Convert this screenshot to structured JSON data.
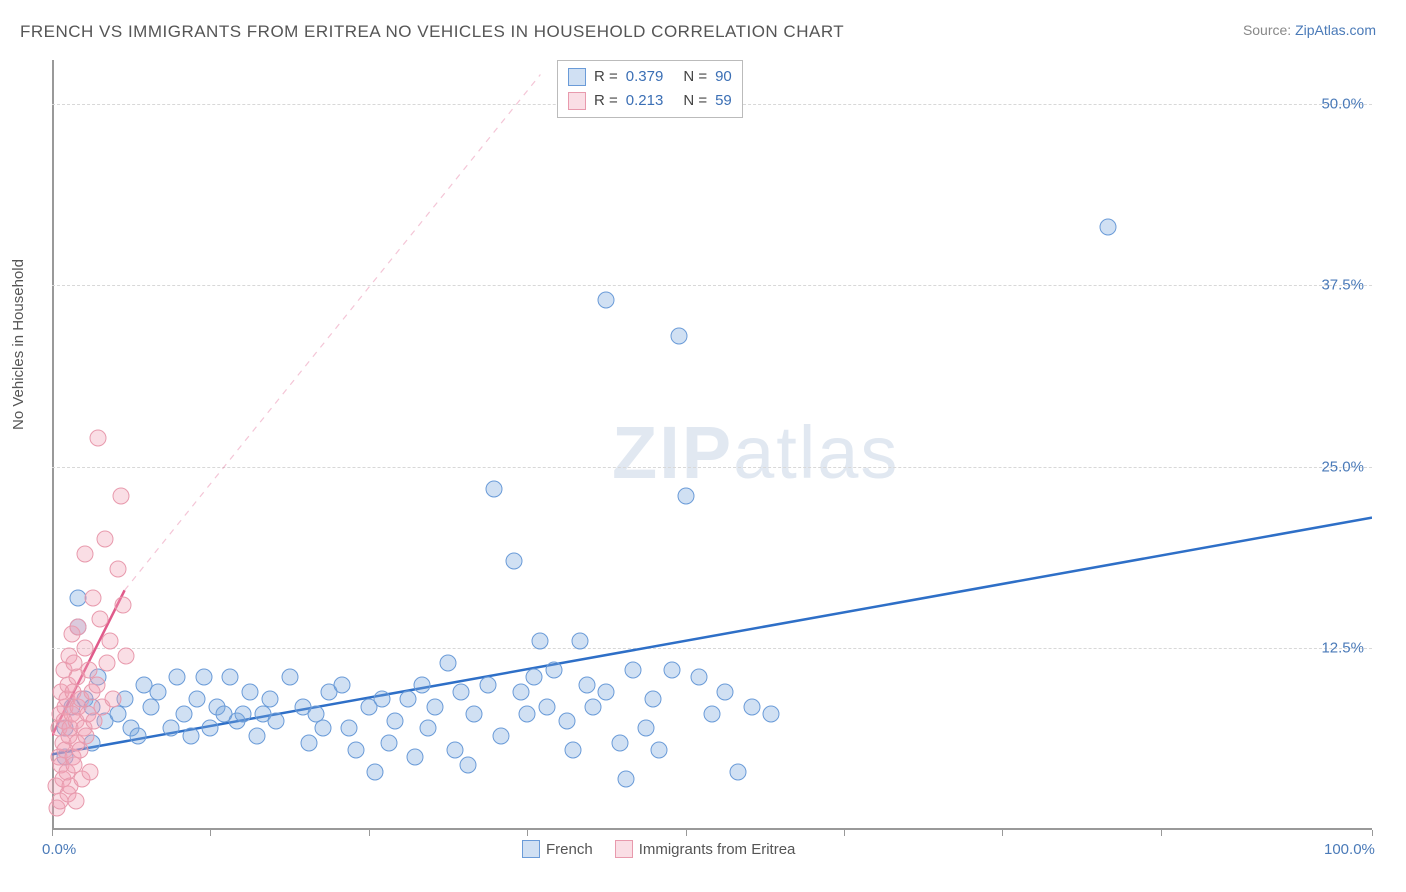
{
  "title": "FRENCH VS IMMIGRANTS FROM ERITREA NO VEHICLES IN HOUSEHOLD CORRELATION CHART",
  "source_prefix": "Source: ",
  "source_link": "ZipAtlas.com",
  "y_axis_label": "No Vehicles in Household",
  "watermark": {
    "bold": "ZIP",
    "rest": "atlas"
  },
  "chart": {
    "type": "scatter",
    "xlim": [
      0,
      100
    ],
    "ylim": [
      0,
      53
    ],
    "x_ticks": [
      0,
      12,
      24,
      36,
      48,
      60,
      72,
      84,
      100
    ],
    "x_tick_labels": {
      "0": "0.0%",
      "100": "100.0%"
    },
    "y_gridlines": [
      12.5,
      25.0,
      37.5,
      50.0
    ],
    "y_tick_labels": [
      "12.5%",
      "25.0%",
      "37.5%",
      "50.0%"
    ],
    "background_color": "#ffffff",
    "grid_color": "#d8d8d8",
    "axis_color": "#999999",
    "marker_radius": 8.5,
    "marker_fill_opacity": 0.35,
    "series": [
      {
        "name": "French",
        "color_stroke": "#6a9bd8",
        "color_fill": "rgba(120,165,220,0.35)",
        "r_value": "0.379",
        "n_value": "90",
        "trend_line": {
          "x1": 0,
          "y1": 5.2,
          "x2": 100,
          "y2": 21.5,
          "color": "#2e6fc7",
          "width": 2.5
        },
        "extrapolation": null,
        "points": [
          [
            1,
            5
          ],
          [
            1,
            7
          ],
          [
            1.5,
            8.5
          ],
          [
            2,
            16
          ],
          [
            2,
            14
          ],
          [
            2.5,
            9
          ],
          [
            3,
            6
          ],
          [
            3,
            8.5
          ],
          [
            3.5,
            10.5
          ],
          [
            4,
            7.5
          ],
          [
            5,
            8
          ],
          [
            5.5,
            9
          ],
          [
            6,
            7
          ],
          [
            6.5,
            6.5
          ],
          [
            7,
            10
          ],
          [
            7.5,
            8.5
          ],
          [
            8,
            9.5
          ],
          [
            9,
            7
          ],
          [
            9.5,
            10.5
          ],
          [
            10,
            8
          ],
          [
            10.5,
            6.5
          ],
          [
            11,
            9
          ],
          [
            11.5,
            10.5
          ],
          [
            12,
            7
          ],
          [
            12.5,
            8.5
          ],
          [
            13,
            8
          ],
          [
            13.5,
            10.5
          ],
          [
            14,
            7.5
          ],
          [
            14.5,
            8
          ],
          [
            15,
            9.5
          ],
          [
            15.5,
            6.5
          ],
          [
            16,
            8
          ],
          [
            16.5,
            9
          ],
          [
            17,
            7.5
          ],
          [
            18,
            10.5
          ],
          [
            19,
            8.5
          ],
          [
            19.5,
            6
          ],
          [
            20,
            8
          ],
          [
            20.5,
            7
          ],
          [
            21,
            9.5
          ],
          [
            22,
            10
          ],
          [
            22.5,
            7
          ],
          [
            23,
            5.5
          ],
          [
            24,
            8.5
          ],
          [
            24.5,
            4
          ],
          [
            25,
            9
          ],
          [
            25.5,
            6
          ],
          [
            26,
            7.5
          ],
          [
            27,
            9
          ],
          [
            27.5,
            5
          ],
          [
            28,
            10
          ],
          [
            28.5,
            7
          ],
          [
            29,
            8.5
          ],
          [
            30,
            11.5
          ],
          [
            30.5,
            5.5
          ],
          [
            31,
            9.5
          ],
          [
            31.5,
            4.5
          ],
          [
            32,
            8
          ],
          [
            33,
            10
          ],
          [
            33.5,
            23.5
          ],
          [
            34,
            6.5
          ],
          [
            35,
            18.5
          ],
          [
            35.5,
            9.5
          ],
          [
            36,
            8
          ],
          [
            36.5,
            10.5
          ],
          [
            37,
            13
          ],
          [
            37.5,
            8.5
          ],
          [
            38,
            11
          ],
          [
            39,
            7.5
          ],
          [
            39.5,
            5.5
          ],
          [
            40,
            13
          ],
          [
            40.5,
            10
          ],
          [
            41,
            8.5
          ],
          [
            42,
            36.5
          ],
          [
            42,
            9.5
          ],
          [
            43,
            6
          ],
          [
            43.5,
            3.5
          ],
          [
            44,
            11
          ],
          [
            45,
            7
          ],
          [
            45.5,
            9
          ],
          [
            46,
            5.5
          ],
          [
            47,
            11
          ],
          [
            47.5,
            34
          ],
          [
            48,
            23
          ],
          [
            49,
            10.5
          ],
          [
            50,
            8
          ],
          [
            51,
            9.5
          ],
          [
            52,
            4
          ],
          [
            53,
            8.5
          ],
          [
            54.5,
            8
          ],
          [
            80,
            41.5
          ]
        ]
      },
      {
        "name": "Immigrants from Eritrea",
        "color_stroke": "#e89aad",
        "color_fill": "rgba(240,160,180,0.35)",
        "r_value": "0.213",
        "n_value": "59",
        "trend_line": {
          "x1": 0,
          "y1": 6.5,
          "x2": 5.5,
          "y2": 16.5,
          "color": "#e05a8a",
          "width": 2.5
        },
        "extrapolation": {
          "x1": 5.5,
          "y1": 16.5,
          "x2": 37,
          "y2": 52,
          "color": "rgba(224,90,138,0.35)",
          "dash": "6,6",
          "width": 1.2
        },
        "points": [
          [
            0.3,
            3
          ],
          [
            0.4,
            1.5
          ],
          [
            0.5,
            5
          ],
          [
            0.5,
            7
          ],
          [
            0.6,
            2
          ],
          [
            0.6,
            8
          ],
          [
            0.7,
            4.5
          ],
          [
            0.7,
            9.5
          ],
          [
            0.8,
            6
          ],
          [
            0.8,
            3.5
          ],
          [
            0.9,
            7.5
          ],
          [
            0.9,
            11
          ],
          [
            1.0,
            5.5
          ],
          [
            1.0,
            8.5
          ],
          [
            1.1,
            4
          ],
          [
            1.1,
            9
          ],
          [
            1.2,
            2.5
          ],
          [
            1.2,
            10
          ],
          [
            1.3,
            6.5
          ],
          [
            1.3,
            12
          ],
          [
            1.4,
            7
          ],
          [
            1.4,
            3
          ],
          [
            1.5,
            8
          ],
          [
            1.5,
            13.5
          ],
          [
            1.6,
            5
          ],
          [
            1.6,
            9.5
          ],
          [
            1.7,
            4.5
          ],
          [
            1.7,
            11.5
          ],
          [
            1.8,
            7.5
          ],
          [
            1.8,
            2
          ],
          [
            1.9,
            6
          ],
          [
            1.9,
            10.5
          ],
          [
            2.0,
            8.5
          ],
          [
            2.0,
            14
          ],
          [
            2.1,
            5.5
          ],
          [
            2.2,
            9
          ],
          [
            2.3,
            3.5
          ],
          [
            2.4,
            7
          ],
          [
            2.5,
            12.5
          ],
          [
            2.5,
            19
          ],
          [
            2.6,
            6.5
          ],
          [
            2.7,
            8
          ],
          [
            2.8,
            11
          ],
          [
            2.9,
            4
          ],
          [
            3.0,
            9.5
          ],
          [
            3.1,
            16
          ],
          [
            3.2,
            7.5
          ],
          [
            3.4,
            10
          ],
          [
            3.6,
            14.5
          ],
          [
            3.5,
            27
          ],
          [
            3.8,
            8.5
          ],
          [
            4.0,
            20
          ],
          [
            4.2,
            11.5
          ],
          [
            4.4,
            13
          ],
          [
            4.6,
            9
          ],
          [
            5.0,
            18
          ],
          [
            5.2,
            23
          ],
          [
            5.4,
            15.5
          ],
          [
            5.6,
            12
          ]
        ]
      }
    ]
  },
  "legend_label_1": "French",
  "legend_label_2": "Immigrants from Eritrea"
}
